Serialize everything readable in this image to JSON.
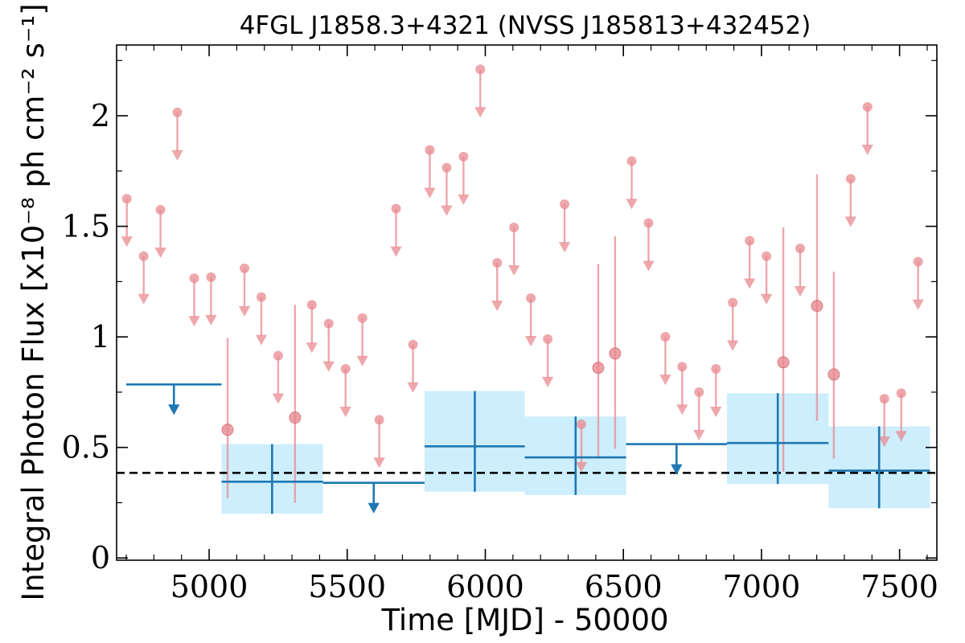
{
  "chart_data": {
    "type": "scatter",
    "title": "4FGL J1858.3+4321 (NVSS J185813+432452)",
    "xlabel": "Time [MJD] - 50000",
    "ylabel": "Integral Photon Flux [x10⁻⁸ ph cm⁻² s⁻¹]",
    "xlim": [
      4665,
      7635
    ],
    "ylim": [
      -0.01,
      2.32
    ],
    "xticks": [
      5000,
      5500,
      6000,
      6500,
      7000,
      7500
    ],
    "xtick_labels": [
      "5000",
      "5500",
      "6000",
      "6500",
      "7000",
      "7500"
    ],
    "yticks": [
      0,
      0.5,
      1,
      1.5,
      2
    ],
    "ytick_labels": [
      "0",
      "0.5",
      "1",
      "1.5",
      "2"
    ],
    "baseline": 0.385,
    "colors": {
      "short_bins": "#e88a90",
      "long_bins": "#1f77b4",
      "long_bin_band": "#cdeefc",
      "baseline": "#000000"
    },
    "series": [
      {
        "upper_limits": [
          {
            "x": 4702,
            "y": 1.625
          },
          {
            "x": 4763,
            "y": 1.365
          },
          {
            "x": 4824,
            "y": 1.575
          },
          {
            "x": 4885,
            "y": 2.015
          },
          {
            "x": 4946,
            "y": 1.265
          },
          {
            "x": 5007,
            "y": 1.27
          },
          {
            "x": 5128,
            "y": 1.31
          },
          {
            "x": 5189,
            "y": 1.18
          },
          {
            "x": 5250,
            "y": 0.915
          },
          {
            "x": 5372,
            "y": 1.145
          },
          {
            "x": 5433,
            "y": 1.06
          },
          {
            "x": 5494,
            "y": 0.855
          },
          {
            "x": 5555,
            "y": 1.085
          },
          {
            "x": 5616,
            "y": 0.625
          },
          {
            "x": 5677,
            "y": 1.58
          },
          {
            "x": 5738,
            "y": 0.965
          },
          {
            "x": 5799,
            "y": 1.845
          },
          {
            "x": 5860,
            "y": 1.765
          },
          {
            "x": 5921,
            "y": 1.815
          },
          {
            "x": 5982,
            "y": 2.21
          },
          {
            "x": 6043,
            "y": 1.335
          },
          {
            "x": 6104,
            "y": 1.495
          },
          {
            "x": 6165,
            "y": 1.175
          },
          {
            "x": 6226,
            "y": 0.99
          },
          {
            "x": 6287,
            "y": 1.6
          },
          {
            "x": 6348,
            "y": 0.605
          },
          {
            "x": 6530,
            "y": 1.795
          },
          {
            "x": 6591,
            "y": 1.515
          },
          {
            "x": 6652,
            "y": 1.0
          },
          {
            "x": 6713,
            "y": 0.865
          },
          {
            "x": 6774,
            "y": 0.75
          },
          {
            "x": 6835,
            "y": 0.855
          },
          {
            "x": 6896,
            "y": 1.155
          },
          {
            "x": 6957,
            "y": 1.435
          },
          {
            "x": 7018,
            "y": 1.365
          },
          {
            "x": 7140,
            "y": 1.4
          },
          {
            "x": 7323,
            "y": 1.715
          },
          {
            "x": 7384,
            "y": 2.04
          },
          {
            "x": 7445,
            "y": 0.72
          },
          {
            "x": 7506,
            "y": 0.745
          },
          {
            "x": 7567,
            "y": 1.34
          }
        ],
        "detections": [
          {
            "x": 5067,
            "y": 0.58,
            "ylo": 0.27,
            "yhi": 0.995
          },
          {
            "x": 5311,
            "y": 0.635,
            "ylo": 0.25,
            "yhi": 1.145
          },
          {
            "x": 6409,
            "y": 0.86,
            "ylo": 0.455,
            "yhi": 1.33
          },
          {
            "x": 6470,
            "y": 0.925,
            "ylo": 0.495,
            "yhi": 1.455
          },
          {
            "x": 7079,
            "y": 0.885,
            "ylo": 0.39,
            "yhi": 1.495
          },
          {
            "x": 7201,
            "y": 1.14,
            "ylo": 0.62,
            "yhi": 1.735
          },
          {
            "x": 7262,
            "y": 0.83,
            "ylo": 0.45,
            "yhi": 1.295
          }
        ]
      },
      {
        "upper_limits": [
          {
            "x0": 4700,
            "x1": 5045,
            "y": 0.785
          },
          {
            "x0": 5412,
            "x1": 5780,
            "y": 0.34
          },
          {
            "x0": 6510,
            "x1": 6875,
            "y": 0.515
          }
        ],
        "detections": [
          {
            "x0": 5045,
            "x1": 5412,
            "x": 5228,
            "y": 0.345,
            "ylo": 0.2,
            "yhi": 0.515
          },
          {
            "x0": 5780,
            "x1": 6143,
            "x": 5962,
            "y": 0.505,
            "ylo": 0.3,
            "yhi": 0.755
          },
          {
            "x0": 6143,
            "x1": 6510,
            "x": 6327,
            "y": 0.455,
            "ylo": 0.285,
            "yhi": 0.64
          },
          {
            "x0": 6875,
            "x1": 7243,
            "x": 7059,
            "y": 0.52,
            "ylo": 0.335,
            "yhi": 0.745
          },
          {
            "x0": 7243,
            "x1": 7610,
            "x": 7426,
            "y": 0.395,
            "ylo": 0.225,
            "yhi": 0.595
          }
        ]
      }
    ]
  }
}
